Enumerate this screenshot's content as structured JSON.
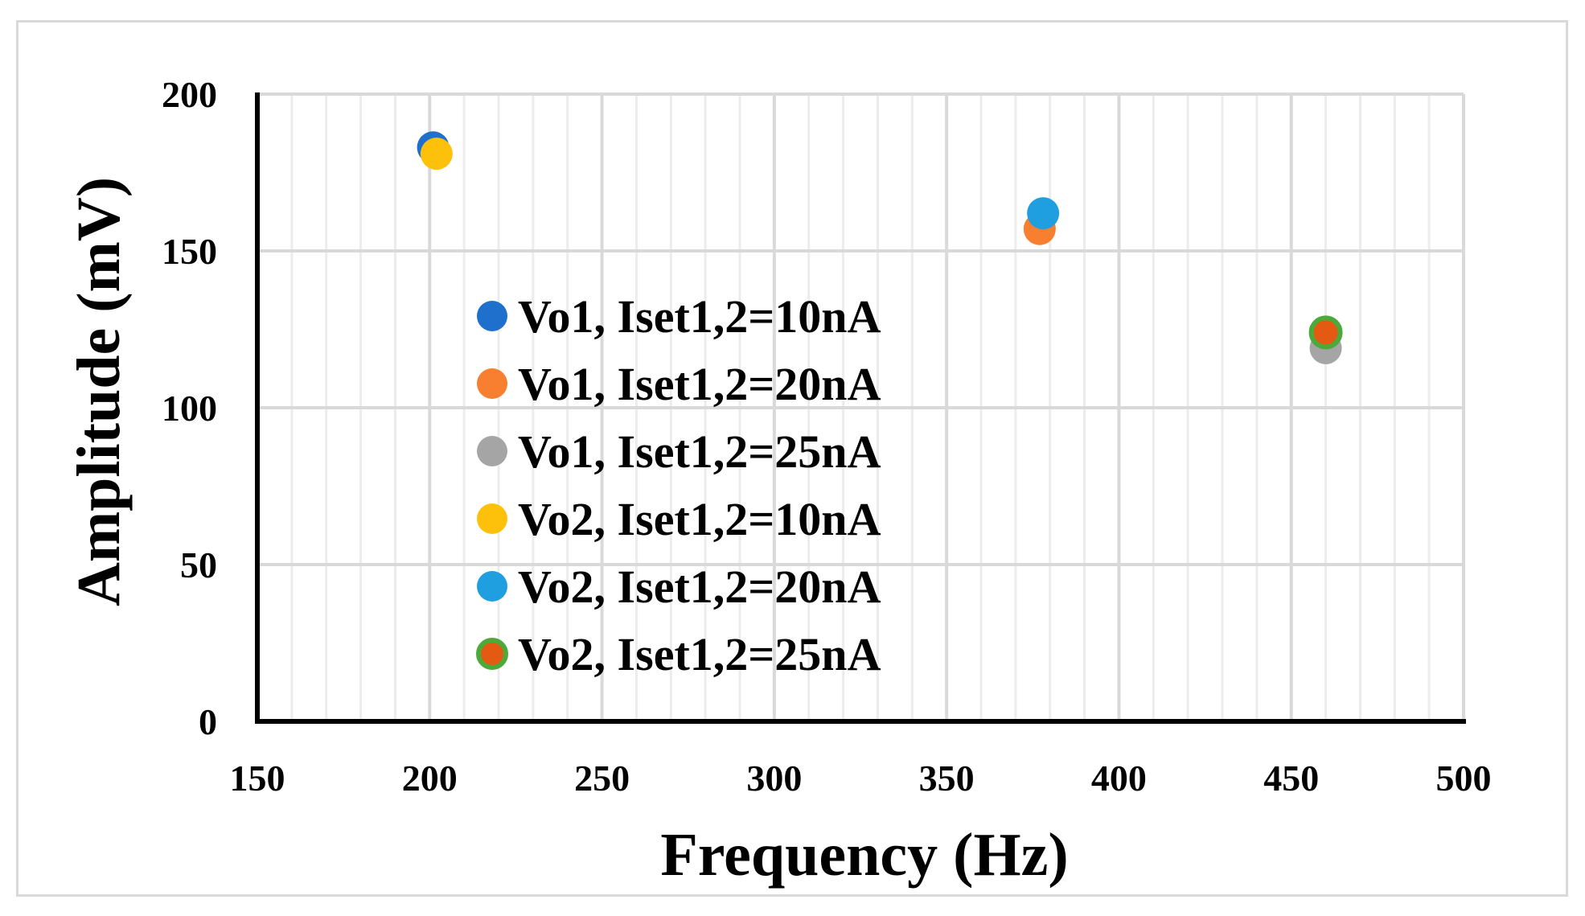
{
  "chart_data": {
    "type": "scatter",
    "title": "",
    "xlabel": "Frequency (Hz)",
    "ylabel": "Amplitude (mV)",
    "xlim": [
      150,
      500
    ],
    "ylim": [
      0,
      200
    ],
    "x_major_ticks": [
      150,
      200,
      250,
      300,
      350,
      400,
      450,
      500
    ],
    "x_tick_labels": [
      "150",
      "200",
      "250",
      "300",
      "350",
      "400",
      "450",
      "500"
    ],
    "x_minor_step": 10,
    "y_major_ticks": [
      0,
      50,
      100,
      150,
      200
    ],
    "y_tick_labels": [
      "0",
      "50",
      "100",
      "150",
      "200"
    ],
    "grid": true,
    "legend_position": "center-left inside plot",
    "series": [
      {
        "name": "Vo1, Iset1,2=10nA",
        "color": "#1f6fcc",
        "outline": "#1f6fcc",
        "points": [
          {
            "x": 201,
            "y": 183
          }
        ]
      },
      {
        "name": "Vo1, Iset1,2=20nA",
        "color": "#f77f2f",
        "outline": "#f77f2f",
        "points": [
          {
            "x": 377,
            "y": 157
          }
        ]
      },
      {
        "name": "Vo1, Iset1,2=25nA",
        "color": "#a5a5a5",
        "outline": "#a5a5a5",
        "points": [
          {
            "x": 460,
            "y": 119
          }
        ]
      },
      {
        "name": "Vo2, Iset1,2=10nA",
        "color": "#fec10b",
        "outline": "#fec10b",
        "points": [
          {
            "x": 202,
            "y": 181
          }
        ]
      },
      {
        "name": "Vo2, Iset1,2=20nA",
        "color": "#1f9ee0",
        "outline": "#1f9ee0",
        "points": [
          {
            "x": 378,
            "y": 162
          }
        ]
      },
      {
        "name": "Vo2, Iset1,2=25nA",
        "color": "#e55a12",
        "outline": "#4caa3a",
        "points": [
          {
            "x": 460,
            "y": 124
          }
        ]
      }
    ]
  }
}
